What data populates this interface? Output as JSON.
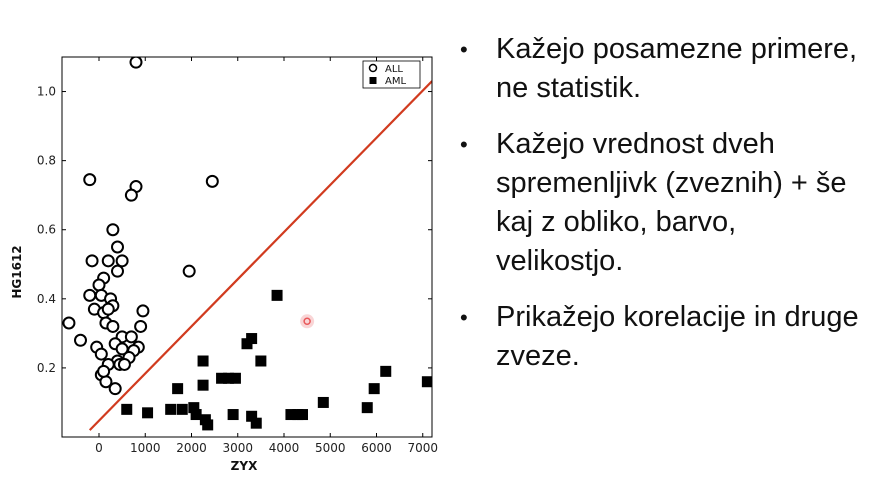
{
  "chart_data": {
    "type": "scatter",
    "title": "",
    "xlabel": "ZYX",
    "ylabel": "HG1612",
    "xlim": [
      -800,
      7200
    ],
    "ylim": [
      0.0,
      1.1
    ],
    "xticks": [
      0,
      1000,
      2000,
      3000,
      4000,
      5000,
      6000,
      7000
    ],
    "yticks": [
      0.2,
      0.4,
      0.6,
      0.8,
      1.0
    ],
    "legend": {
      "position": "top-right",
      "entries": [
        "ALL",
        "AML"
      ]
    },
    "grid": false,
    "series": [
      {
        "name": "ALL",
        "marker": "open-circle",
        "color": "#000000",
        "points": [
          [
            800,
            1.085
          ],
          [
            -200,
            0.745
          ],
          [
            800,
            0.725
          ],
          [
            700,
            0.7
          ],
          [
            2450,
            0.74
          ],
          [
            300,
            0.6
          ],
          [
            1950,
            0.48
          ],
          [
            400,
            0.55
          ],
          [
            200,
            0.51
          ],
          [
            500,
            0.51
          ],
          [
            -150,
            0.51
          ],
          [
            400,
            0.48
          ],
          [
            100,
            0.46
          ],
          [
            0,
            0.44
          ],
          [
            -200,
            0.41
          ],
          [
            50,
            0.41
          ],
          [
            250,
            0.4
          ],
          [
            300,
            0.38
          ],
          [
            -100,
            0.37
          ],
          [
            100,
            0.36
          ],
          [
            200,
            0.37
          ],
          [
            950,
            0.365
          ],
          [
            150,
            0.33
          ],
          [
            -650,
            0.33
          ],
          [
            300,
            0.32
          ],
          [
            900,
            0.32
          ],
          [
            500,
            0.29
          ],
          [
            700,
            0.29
          ],
          [
            -400,
            0.28
          ],
          [
            350,
            0.27
          ],
          [
            850,
            0.26
          ],
          [
            -50,
            0.26
          ],
          [
            500,
            0.255
          ],
          [
            750,
            0.25
          ],
          [
            50,
            0.24
          ],
          [
            650,
            0.23
          ],
          [
            400,
            0.22
          ],
          [
            200,
            0.21
          ],
          [
            450,
            0.21
          ],
          [
            550,
            0.21
          ],
          [
            50,
            0.18
          ],
          [
            150,
            0.16
          ],
          [
            350,
            0.14
          ],
          [
            100,
            0.19
          ]
        ]
      },
      {
        "name": "AML",
        "marker": "filled-square",
        "color": "#000000",
        "points": [
          [
            3850,
            0.41
          ],
          [
            2250,
            0.22
          ],
          [
            3500,
            0.22
          ],
          [
            3200,
            0.27
          ],
          [
            3300,
            0.285
          ],
          [
            1700,
            0.14
          ],
          [
            2250,
            0.15
          ],
          [
            2650,
            0.17
          ],
          [
            2800,
            0.17
          ],
          [
            2950,
            0.17
          ],
          [
            600,
            0.08
          ],
          [
            1050,
            0.07
          ],
          [
            1550,
            0.08
          ],
          [
            1800,
            0.08
          ],
          [
            2050,
            0.085
          ],
          [
            2100,
            0.065
          ],
          [
            2300,
            0.05
          ],
          [
            2350,
            0.035
          ],
          [
            2900,
            0.065
          ],
          [
            3300,
            0.06
          ],
          [
            3400,
            0.04
          ],
          [
            4150,
            0.065
          ],
          [
            4300,
            0.065
          ],
          [
            4400,
            0.065
          ],
          [
            4850,
            0.1
          ],
          [
            5800,
            0.085
          ],
          [
            5950,
            0.14
          ],
          [
            6200,
            0.19
          ],
          [
            7100,
            0.16
          ]
        ]
      }
    ],
    "separator_line": {
      "color": "#d13b1f",
      "points": [
        [
          -200,
          0.02
        ],
        [
          7200,
          1.03
        ]
      ]
    },
    "highlight_marker": {
      "color": "#e8585a",
      "point": [
        4500,
        0.335
      ]
    }
  },
  "bullets": [
    "Kažejo posamezne primere, ne statistik.",
    "Kažejo vrednost dveh spremenljivk (zveznih) + še kaj z obliko, barvo, velikostjo.",
    "Prikažejo korelacije in druge zveze."
  ],
  "bullet_glyph": "•"
}
